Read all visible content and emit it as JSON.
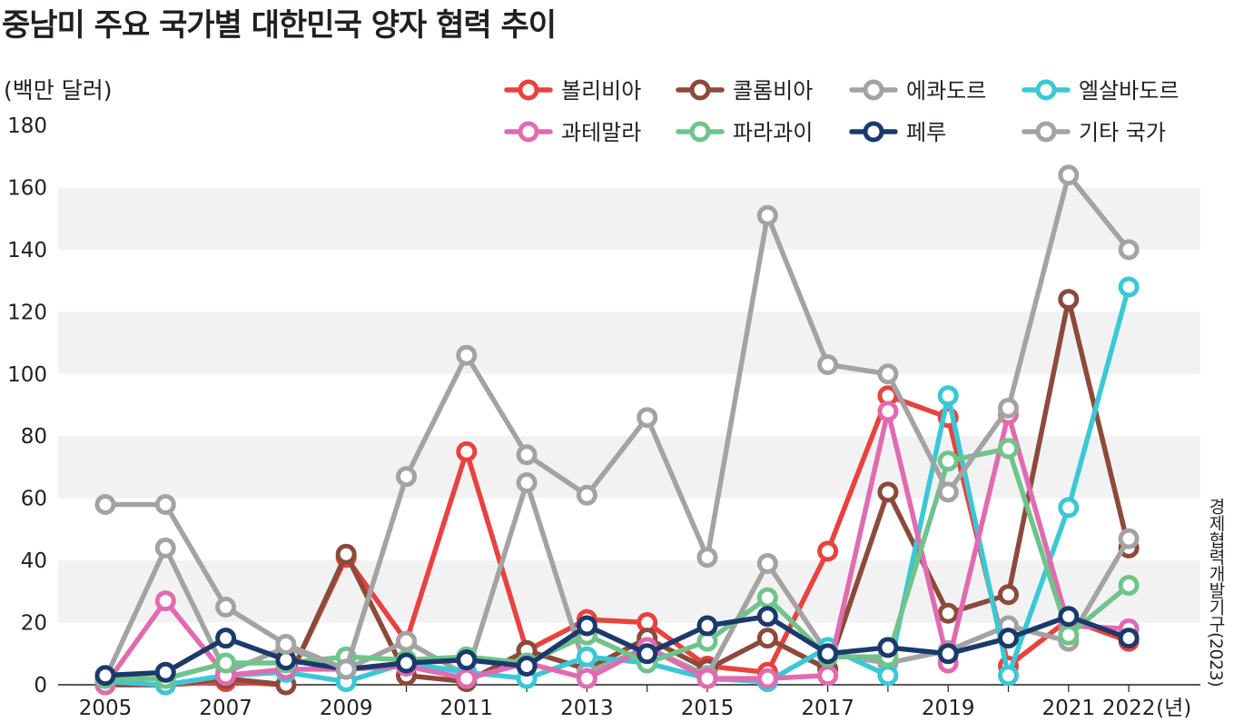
{
  "title": "중남미 주요 국가별 대한민국 양자 협력 추이",
  "unit": "(백만 달러)",
  "source": "경제협력개발기구(2023)",
  "year_unit": "(년)",
  "chart_data": {
    "type": "line",
    "title": "중남미 주요 국가별 대한민국 양자 협력 추이",
    "ylabel": "(백만 달러)",
    "xlabel": "(년)",
    "ylim": [
      0,
      180
    ],
    "y_ticks": [
      0,
      20,
      40,
      60,
      80,
      100,
      120,
      140,
      160,
      180
    ],
    "x": [
      2005,
      2006,
      2007,
      2008,
      2009,
      2010,
      2011,
      2012,
      2013,
      2014,
      2015,
      2016,
      2017,
      2018,
      2019,
      2020,
      2021,
      2022
    ],
    "x_tick_labels": [
      "2005",
      "2007",
      "2009",
      "2011",
      "2013",
      "2015",
      "2017",
      "2019",
      "2021",
      "2022"
    ],
    "grid": "alternating horizontal bands",
    "legend": "top-right",
    "series": [
      {
        "name": "볼리비아",
        "color": "#e8423f",
        "values": [
          0,
          0,
          1,
          0,
          41,
          14,
          75,
          11,
          21,
          20,
          6,
          4,
          43,
          93,
          86,
          6,
          21,
          14
        ]
      },
      {
        "name": "콜롬비아",
        "color": "#8b4a3a",
        "values": [
          0,
          0,
          2,
          0,
          42,
          3,
          1,
          11,
          5,
          15,
          5,
          15,
          5,
          62,
          23,
          29,
          124,
          44
        ]
      },
      {
        "name": "에콰도르",
        "color": "#a3a3a3",
        "values": [
          2,
          44,
          4,
          12,
          5,
          14,
          3,
          65,
          4,
          12,
          3,
          39,
          10,
          7,
          11,
          19,
          14,
          47
        ]
      },
      {
        "name": "엘살바도르",
        "color": "#3bc8d5",
        "values": [
          1,
          0,
          3,
          4,
          1,
          7,
          4,
          2,
          9,
          7,
          2,
          1,
          12,
          3,
          93,
          3,
          57,
          128
        ]
      },
      {
        "name": "과테말라",
        "color": "#e06bb0",
        "values": [
          0,
          27,
          3,
          5,
          5,
          6,
          2,
          7,
          2,
          12,
          2,
          2,
          3,
          88,
          7,
          87,
          19,
          18
        ]
      },
      {
        "name": "파라과이",
        "color": "#6fc48a",
        "values": [
          2,
          2,
          7,
          7,
          9,
          8,
          9,
          7,
          16,
          7,
          14,
          28,
          9,
          9,
          72,
          76,
          16,
          32
        ]
      },
      {
        "name": "페루",
        "color": "#1b3a6b",
        "values": [
          3,
          4,
          15,
          8,
          5,
          7,
          8,
          6,
          19,
          10,
          19,
          22,
          10,
          12,
          10,
          15,
          22,
          15
        ]
      },
      {
        "name": "기타 국가",
        "color": "#a3a3a3",
        "values": [
          58,
          58,
          25,
          13,
          5,
          67,
          106,
          74,
          61,
          86,
          41,
          151,
          103,
          100,
          62,
          89,
          164,
          140
        ]
      }
    ]
  }
}
